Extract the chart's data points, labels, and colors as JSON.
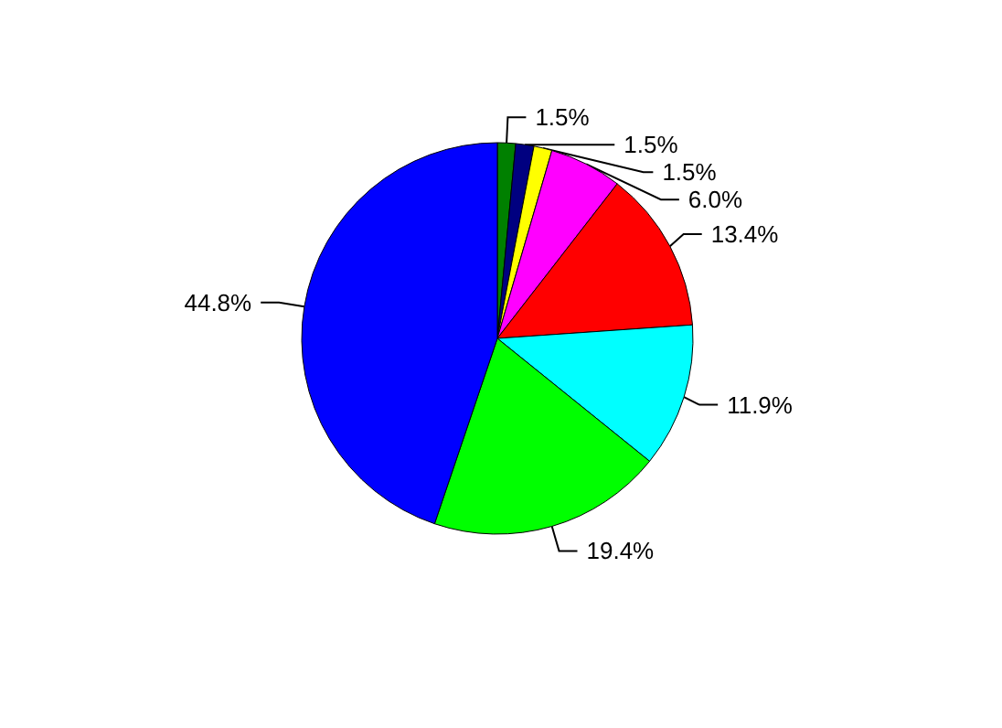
{
  "chart_data": {
    "type": "pie",
    "categories": [
      null,
      null,
      null,
      null,
      null,
      null,
      null,
      null
    ],
    "values": [
      1.5,
      1.5,
      1.5,
      6.0,
      13.4,
      11.9,
      19.4,
      44.8
    ],
    "colors": [
      "#008000",
      "#000080",
      "#ffff00",
      "#ff00ff",
      "#ff0000",
      "#00ffff",
      "#00ff00",
      "#0000ff"
    ],
    "value_labels": [
      "1.5%",
      "1.5%",
      "1.5%",
      "6.0%",
      "13.4%",
      "11.9%",
      "19.4%",
      "44.8%"
    ]
  }
}
